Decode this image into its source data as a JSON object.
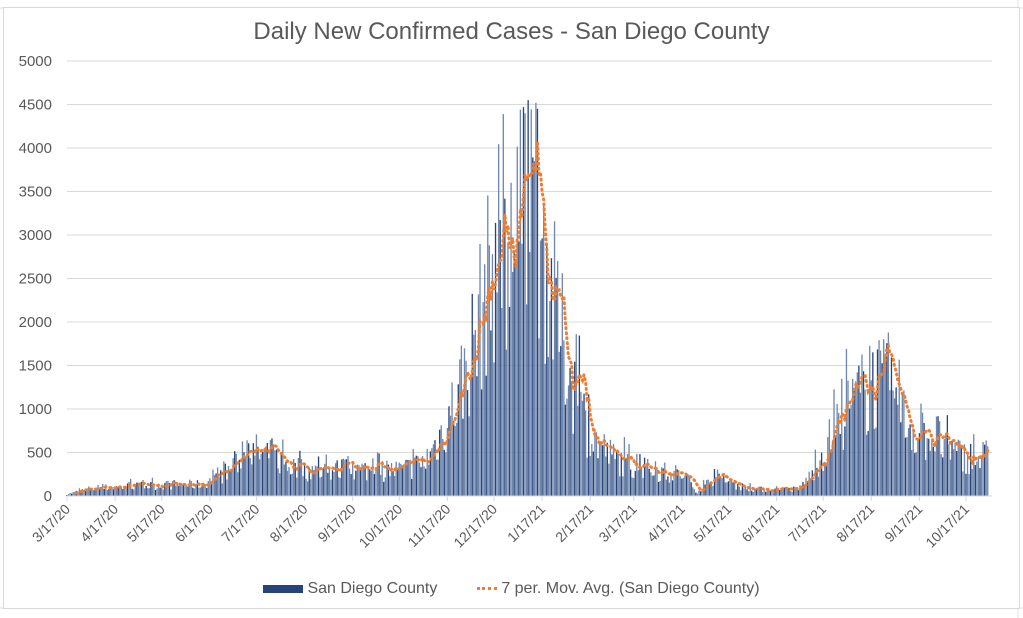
{
  "chart_data": {
    "type": "bar",
    "title": "Daily New Confirmed Cases - San Diego County",
    "xlabel": "",
    "ylabel": "",
    "ylim": [
      0,
      5000
    ],
    "yticks": [
      0,
      500,
      1000,
      1500,
      2000,
      2500,
      3000,
      3500,
      4000,
      4500,
      5000
    ],
    "ytick_labels": [
      "0",
      "500",
      "1000",
      "1500",
      "2000",
      "2500",
      "3000",
      "3500",
      "4000",
      "4500",
      "5000"
    ],
    "xtick_labels": [
      "3/17/20",
      "4/17/20",
      "5/17/20",
      "6/17/20",
      "7/17/20",
      "8/17/20",
      "9/17/20",
      "10/17/20",
      "11/17/20",
      "12/17/20",
      "1/17/21",
      "2/17/21",
      "3/17/21",
      "4/17/21",
      "5/17/21",
      "6/17/21",
      "7/17/21",
      "8/17/21",
      "9/17/21",
      "10/17/21"
    ],
    "x_start": "3/17/20",
    "x_end": "10/31/21",
    "grid": true,
    "legend_position": "bottom",
    "series": [
      {
        "name": "San Diego County",
        "type": "bar",
        "color": "#264478",
        "weekly_avg_anchors": [
          [
            "3/17/20",
            20
          ],
          [
            "3/31/20",
            80
          ],
          [
            "4/14/20",
            100
          ],
          [
            "4/28/20",
            110
          ],
          [
            "5/12/20",
            120
          ],
          [
            "5/26/20",
            130
          ],
          [
            "6/9/20",
            130
          ],
          [
            "6/23/20",
            200
          ],
          [
            "7/7/20",
            430
          ],
          [
            "7/17/20",
            500
          ],
          [
            "7/27/20",
            450
          ],
          [
            "8/10/20",
            330
          ],
          [
            "8/24/20",
            280
          ],
          [
            "9/7/20",
            300
          ],
          [
            "9/21/20",
            300
          ],
          [
            "10/5/20",
            290
          ],
          [
            "10/19/20",
            300
          ],
          [
            "11/2/20",
            380
          ],
          [
            "11/10/20",
            600
          ],
          [
            "11/20/20",
            1000
          ],
          [
            "11/30/20",
            1500
          ],
          [
            "12/10/20",
            2200
          ],
          [
            "12/20/20",
            2900
          ],
          [
            "12/27/20",
            2600
          ],
          [
            "1/3/21",
            3100
          ],
          [
            "1/10/21",
            3600
          ],
          [
            "1/17/21",
            2900
          ],
          [
            "1/27/21",
            2000
          ],
          [
            "2/7/21",
            1200
          ],
          [
            "2/17/21",
            700
          ],
          [
            "3/3/21",
            450
          ],
          [
            "3/17/21",
            330
          ],
          [
            "4/1/21",
            280
          ],
          [
            "4/17/21",
            250
          ],
          [
            "4/27/21",
            50
          ],
          [
            "5/7/21",
            200
          ],
          [
            "5/17/21",
            150
          ],
          [
            "6/1/21",
            80
          ],
          [
            "6/17/21",
            70
          ],
          [
            "7/1/21",
            80
          ],
          [
            "7/10/21",
            250
          ],
          [
            "7/20/21",
            600
          ],
          [
            "8/1/21",
            950
          ],
          [
            "8/10/21",
            1150
          ],
          [
            "8/20/21",
            1300
          ],
          [
            "8/30/21",
            1200
          ],
          [
            "9/7/21",
            900
          ],
          [
            "9/17/21",
            700
          ],
          [
            "9/27/21",
            700
          ],
          [
            "10/7/21",
            500
          ],
          [
            "10/17/21",
            450
          ],
          [
            "10/31/21",
            450
          ]
        ],
        "notable_peaks": [
          [
            "1/8/21",
            4550
          ],
          [
            "1/5/21",
            4470
          ],
          [
            "1/6/21",
            4400
          ],
          [
            "12/28/20",
            3600
          ],
          [
            "1/12/21",
            3850
          ],
          [
            "8/28/21",
            1880
          ],
          [
            "7/11/20",
            640
          ],
          [
            "8/3/20",
            650
          ]
        ]
      },
      {
        "name": "7 per. Mov. Avg. (San Diego County)",
        "type": "line",
        "style": "dotted",
        "color": "#ed7d31"
      }
    ]
  }
}
